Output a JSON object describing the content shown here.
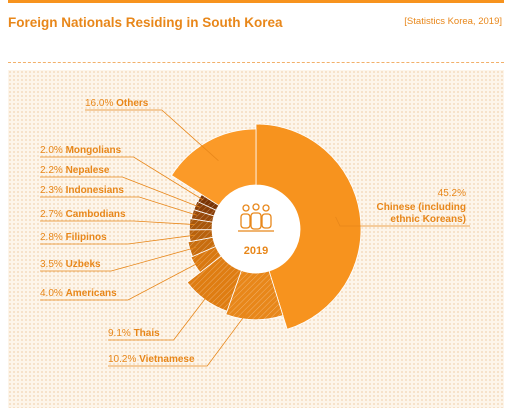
{
  "header": {
    "title": "Foreign Nationals Residing in South Korea",
    "source": "[Statistics Korea, 2019]"
  },
  "center": {
    "year": "2019",
    "icon": "people-group-icon"
  },
  "colors": {
    "accent": "#f7931e",
    "text": "#e8871a",
    "dark": "#8a4a0f",
    "light_bg": "#fdf5ea"
  },
  "chart_data": {
    "type": "pie",
    "variant": "donut with radius varying by share",
    "unit": "%",
    "slices": [
      {
        "name": "Chinese (including ethnic Koreans)",
        "value": 45.2
      },
      {
        "name": "Vietnamese",
        "value": 10.2
      },
      {
        "name": "Thais",
        "value": 9.1
      },
      {
        "name": "Americans",
        "value": 4.0
      },
      {
        "name": "Uzbeks",
        "value": 3.5
      },
      {
        "name": "Filipinos",
        "value": 2.8
      },
      {
        "name": "Cambodians",
        "value": 2.7
      },
      {
        "name": "Indonesians",
        "value": 2.3
      },
      {
        "name": "Nepalese",
        "value": 2.2
      },
      {
        "name": "Mongolians",
        "value": 2.0
      },
      {
        "name": "Others",
        "value": 16.0
      }
    ],
    "labels": [
      {
        "value": "45.2%",
        "name_lines": [
          "Chinese (including",
          "ethnic Koreans)"
        ]
      },
      {
        "value": "10.2%",
        "name_lines": [
          "Vietnamese"
        ]
      },
      {
        "value": "9.1%",
        "name_lines": [
          "Thais"
        ]
      },
      {
        "value": "4.0%",
        "name_lines": [
          "Americans"
        ]
      },
      {
        "value": "3.5%",
        "name_lines": [
          "Uzbeks"
        ]
      },
      {
        "value": "2.8%",
        "name_lines": [
          "Filipinos"
        ]
      },
      {
        "value": "2.7%",
        "name_lines": [
          "Cambodians"
        ]
      },
      {
        "value": "2.3%",
        "name_lines": [
          "Indonesians"
        ]
      },
      {
        "value": "2.2%",
        "name_lines": [
          "Nepalese"
        ]
      },
      {
        "value": "2.0%",
        "name_lines": [
          "Mongolians"
        ]
      },
      {
        "value": "16.0%",
        "name_lines": [
          "Others"
        ]
      }
    ]
  }
}
